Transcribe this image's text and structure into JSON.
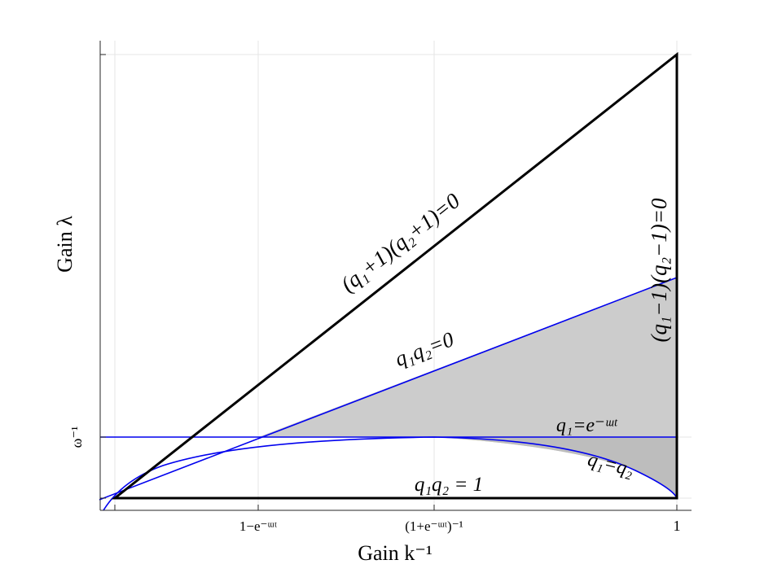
{
  "axes": {
    "xlabel": "Gain k⁻¹",
    "ylabel": "Gain λ",
    "xticks": [
      "1−e⁻ᵚᵗ",
      "(1+e⁻ᵚᵗ)⁻¹",
      "1"
    ],
    "yticks": [
      "ω⁻¹"
    ]
  },
  "curves": {
    "outer_top": "(q₁+1)(q₂+1)=0",
    "outer_right": "(q₁−1)(q₂−1)=0",
    "q1q2_zero": "q₁q₂=0",
    "q1_exp": "q₁=e⁻ᵚᵗ",
    "q1_eq_q2": "q₁=q₂",
    "q1q2_one": "q₁q₂ = 1"
  },
  "colors": {
    "region_fill": "#cccccc",
    "region_fill_dark": "#bdbdbd",
    "blue": "#0000ee",
    "black": "#000000",
    "grid": "#e6e6e6"
  }
}
